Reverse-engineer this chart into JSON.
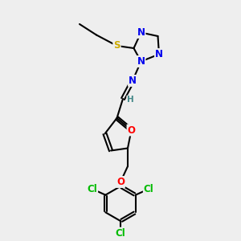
{
  "bg_color": "#eeeeee",
  "bond_color": "#000000",
  "bond_width": 1.5,
  "atom_colors": {
    "N": "#0000ee",
    "S": "#ccaa00",
    "O": "#ff0000",
    "Cl": "#00bb00",
    "H": "#448888",
    "C": "#000000"
  },
  "font_size": 8.5,
  "fig_size": [
    3.0,
    3.0
  ],
  "dpi": 100,
  "xlim": [
    0,
    10
  ],
  "ylim": [
    0,
    10
  ]
}
